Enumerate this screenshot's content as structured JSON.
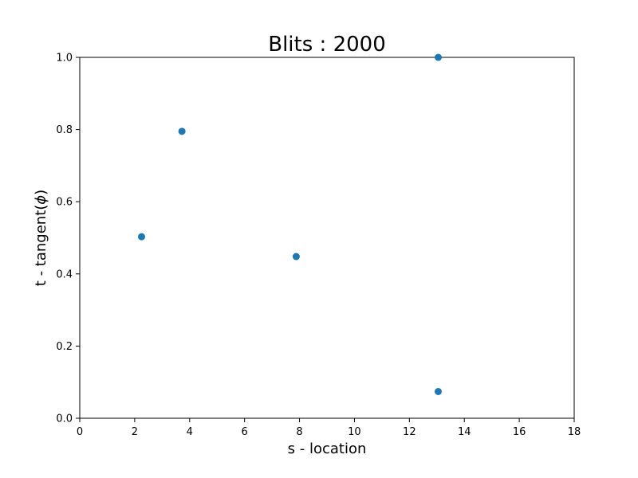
{
  "chart_data": {
    "type": "scatter",
    "title": "Blits : 2000",
    "xlabel": "s - location",
    "ylabel_text": "t - tangent(",
    "ylabel_symbol": "ϕ",
    "ylabel_close": ")",
    "xlim": [
      0,
      18
    ],
    "ylim": [
      0,
      1.0
    ],
    "xticks": [
      0,
      2,
      4,
      6,
      8,
      10,
      12,
      14,
      16,
      18
    ],
    "xtick_labels": [
      "0",
      "2",
      "4",
      "6",
      "8",
      "10",
      "12",
      "14",
      "16",
      "18"
    ],
    "yticks": [
      0.0,
      0.2,
      0.4,
      0.6,
      0.8,
      1.0
    ],
    "ytick_labels": [
      "0.0",
      "0.2",
      "0.4",
      "0.6",
      "0.8",
      "1.0"
    ],
    "grid": false,
    "marker_color": "#1f77b4",
    "points": [
      {
        "x": 2.25,
        "y": 0.503
      },
      {
        "x": 3.72,
        "y": 0.795
      },
      {
        "x": 7.88,
        "y": 0.448
      },
      {
        "x": 13.05,
        "y": 1.0
      },
      {
        "x": 13.05,
        "y": 0.074
      }
    ]
  }
}
